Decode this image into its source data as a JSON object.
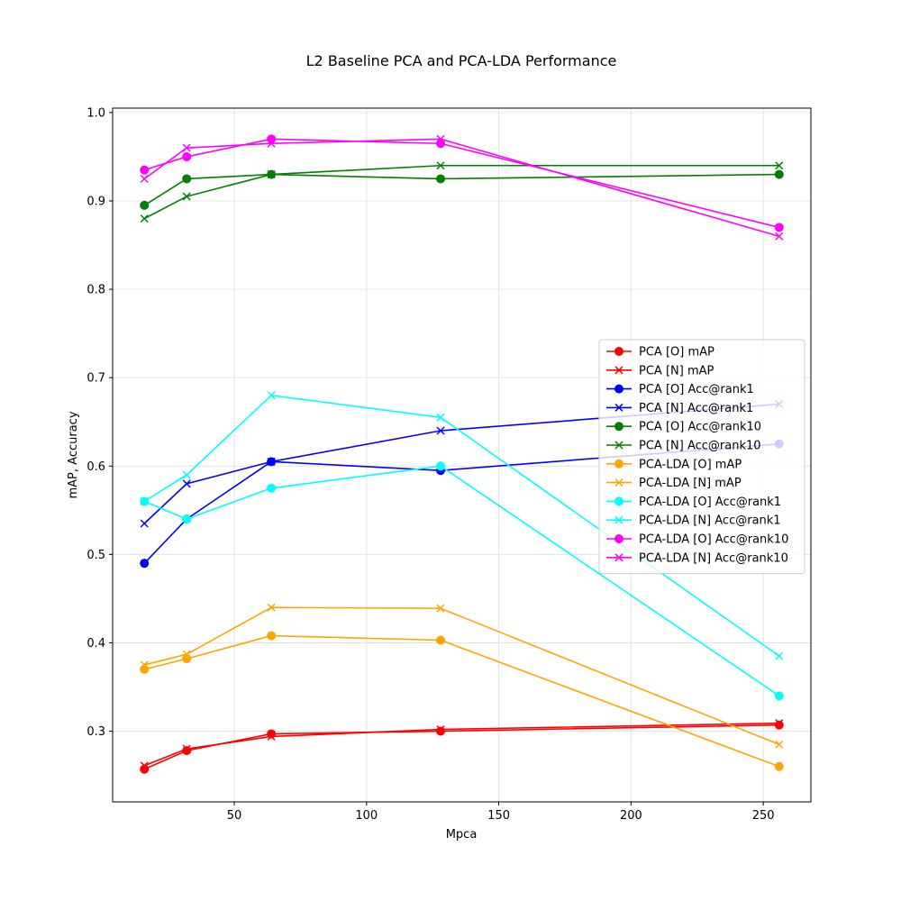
{
  "chart_data": {
    "type": "line",
    "title": "L2 Baseline PCA and PCA-LDA Performance",
    "xlabel": "Mpca",
    "ylabel": "mAP, Accuracy",
    "xlim": [
      4,
      268
    ],
    "ylim": [
      0.22,
      1.005
    ],
    "xticks": [
      50,
      100,
      150,
      200,
      250
    ],
    "yticks": [
      0.3,
      0.4,
      0.5,
      0.6,
      0.7,
      0.8,
      0.9,
      1.0
    ],
    "xtick_labels": [
      "50",
      "100",
      "150",
      "200",
      "250"
    ],
    "ytick_labels": [
      "0.3",
      "0.4",
      "0.5",
      "0.6",
      "0.7",
      "0.8",
      "0.9",
      "1.0"
    ],
    "grid": true,
    "legend_position": "center-right",
    "x": [
      16,
      32,
      64,
      128,
      256
    ],
    "series": [
      {
        "name": "PCA [O] mAP",
        "color": "#ff0000",
        "marker": "circle",
        "values": [
          0.257,
          0.278,
          0.297,
          0.3,
          0.307
        ]
      },
      {
        "name": "PCA [N] mAP",
        "color": "#ff0000",
        "marker": "x",
        "values": [
          0.261,
          0.28,
          0.294,
          0.302,
          0.309
        ]
      },
      {
        "name": "PCA [O] Acc@rank1",
        "color": "#0000ff",
        "marker": "circle",
        "values": [
          0.49,
          0.54,
          0.605,
          0.595,
          0.625
        ]
      },
      {
        "name": "PCA [N] Acc@rank1",
        "color": "#0000ff",
        "marker": "x",
        "values": [
          0.535,
          0.58,
          0.605,
          0.64,
          0.67
        ]
      },
      {
        "name": "PCA [O] Acc@rank10",
        "color": "#008000",
        "marker": "circle",
        "values": [
          0.895,
          0.925,
          0.93,
          0.925,
          0.93
        ]
      },
      {
        "name": "PCA [N] Acc@rank10",
        "color": "#008000",
        "marker": "x",
        "values": [
          0.88,
          0.905,
          0.93,
          0.94,
          0.94
        ]
      },
      {
        "name": "PCA-LDA [O] mAP",
        "color": "#ffa500",
        "marker": "circle",
        "values": [
          0.37,
          0.382,
          0.408,
          0.403,
          0.26
        ]
      },
      {
        "name": "PCA-LDA [N] mAP",
        "color": "#ffa500",
        "marker": "x",
        "values": [
          0.375,
          0.387,
          0.44,
          0.439,
          0.285
        ]
      },
      {
        "name": "PCA-LDA [O] Acc@rank1",
        "color": "#00ffff",
        "marker": "circle",
        "values": [
          0.56,
          0.54,
          0.575,
          0.6,
          0.34
        ]
      },
      {
        "name": "PCA-LDA [N] Acc@rank1",
        "color": "#00ffff",
        "marker": "x",
        "values": [
          0.56,
          0.59,
          0.68,
          0.655,
          0.385
        ]
      },
      {
        "name": "PCA-LDA [O] Acc@rank10",
        "color": "#ff00ff",
        "marker": "circle",
        "values": [
          0.935,
          0.95,
          0.97,
          0.965,
          0.87
        ]
      },
      {
        "name": "PCA-LDA [N] Acc@rank10",
        "color": "#ff00ff",
        "marker": "x",
        "values": [
          0.925,
          0.96,
          0.965,
          0.97,
          0.86
        ]
      }
    ]
  }
}
